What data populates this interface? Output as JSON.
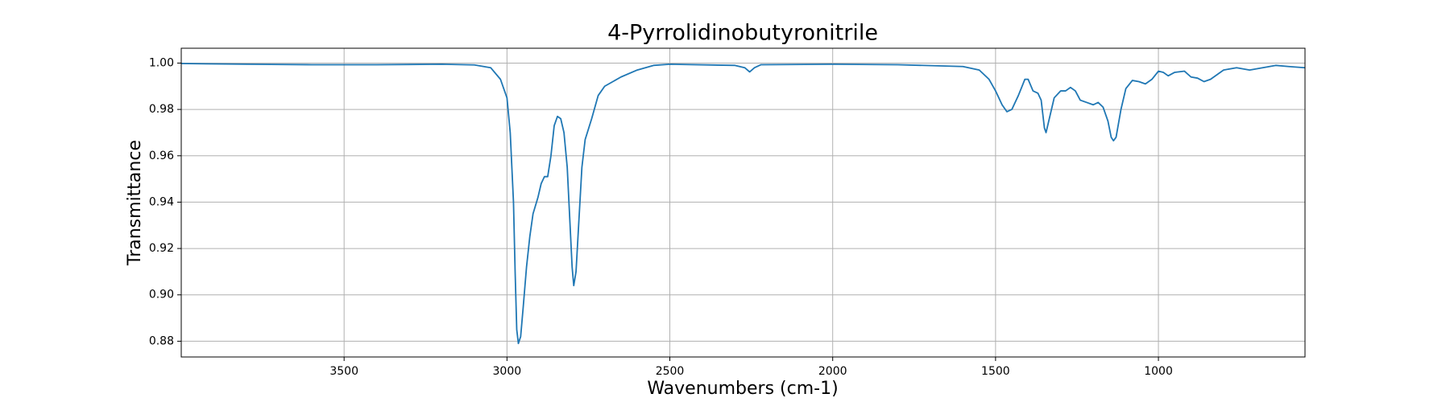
{
  "chart_data": {
    "type": "line",
    "title": "4-Pyrrolidinobutyronitrile",
    "xlabel": "Wavenumbers (cm-1)",
    "ylabel": "Transmittance",
    "x": [
      4000,
      3800,
      3600,
      3400,
      3200,
      3100,
      3050,
      3020,
      3000,
      2990,
      2980,
      2975,
      2970,
      2965,
      2958,
      2950,
      2940,
      2930,
      2920,
      2905,
      2895,
      2885,
      2875,
      2865,
      2855,
      2845,
      2835,
      2825,
      2815,
      2808,
      2800,
      2795,
      2788,
      2780,
      2770,
      2760,
      2740,
      2720,
      2700,
      2650,
      2600,
      2550,
      2500,
      2300,
      2270,
      2255,
      2240,
      2220,
      2000,
      1800,
      1600,
      1550,
      1520,
      1500,
      1480,
      1465,
      1450,
      1430,
      1410,
      1400,
      1385,
      1370,
      1360,
      1350,
      1345,
      1335,
      1320,
      1300,
      1285,
      1270,
      1255,
      1240,
      1220,
      1200,
      1185,
      1170,
      1155,
      1145,
      1138,
      1130,
      1115,
      1100,
      1080,
      1060,
      1040,
      1020,
      1000,
      985,
      970,
      950,
      920,
      900,
      880,
      860,
      840,
      800,
      760,
      720,
      680,
      640,
      600,
      550
    ],
    "series": [
      {
        "name": "Transmittance",
        "color": "#1f77b4",
        "values": [
          0.9998,
          0.9995,
          0.9993,
          0.9993,
          0.9995,
          0.9992,
          0.998,
          0.993,
          0.985,
          0.97,
          0.94,
          0.91,
          0.885,
          0.879,
          0.882,
          0.895,
          0.912,
          0.925,
          0.935,
          0.942,
          0.948,
          0.951,
          0.951,
          0.96,
          0.973,
          0.977,
          0.976,
          0.97,
          0.955,
          0.935,
          0.912,
          0.904,
          0.91,
          0.93,
          0.955,
          0.967,
          0.976,
          0.986,
          0.99,
          0.994,
          0.997,
          0.999,
          0.9995,
          0.999,
          0.998,
          0.9962,
          0.998,
          0.9993,
          0.9995,
          0.9993,
          0.9985,
          0.997,
          0.993,
          0.988,
          0.982,
          0.979,
          0.98,
          0.986,
          0.993,
          0.993,
          0.988,
          0.987,
          0.984,
          0.972,
          0.97,
          0.976,
          0.985,
          0.988,
          0.988,
          0.9895,
          0.988,
          0.984,
          0.983,
          0.982,
          0.983,
          0.981,
          0.975,
          0.968,
          0.9665,
          0.968,
          0.98,
          0.989,
          0.9925,
          0.992,
          0.991,
          0.993,
          0.9965,
          0.996,
          0.9945,
          0.996,
          0.9965,
          0.994,
          0.9935,
          0.992,
          0.993,
          0.997,
          0.998,
          0.997,
          0.998,
          0.999,
          0.9985,
          0.998
        ]
      }
    ],
    "xlim": [
      4000,
      550
    ],
    "xticks": [
      3500,
      3000,
      2500,
      2000,
      1500,
      1000
    ],
    "ylim": [
      0.8732,
      1.0064
    ],
    "yticks": [
      0.88,
      {
        "value": 0.9,
        "label": "0.90"
      },
      0.92,
      0.94,
      0.96,
      0.98,
      {
        "value": 1,
        "label": "1.00"
      }
    ],
    "grid": true
  }
}
